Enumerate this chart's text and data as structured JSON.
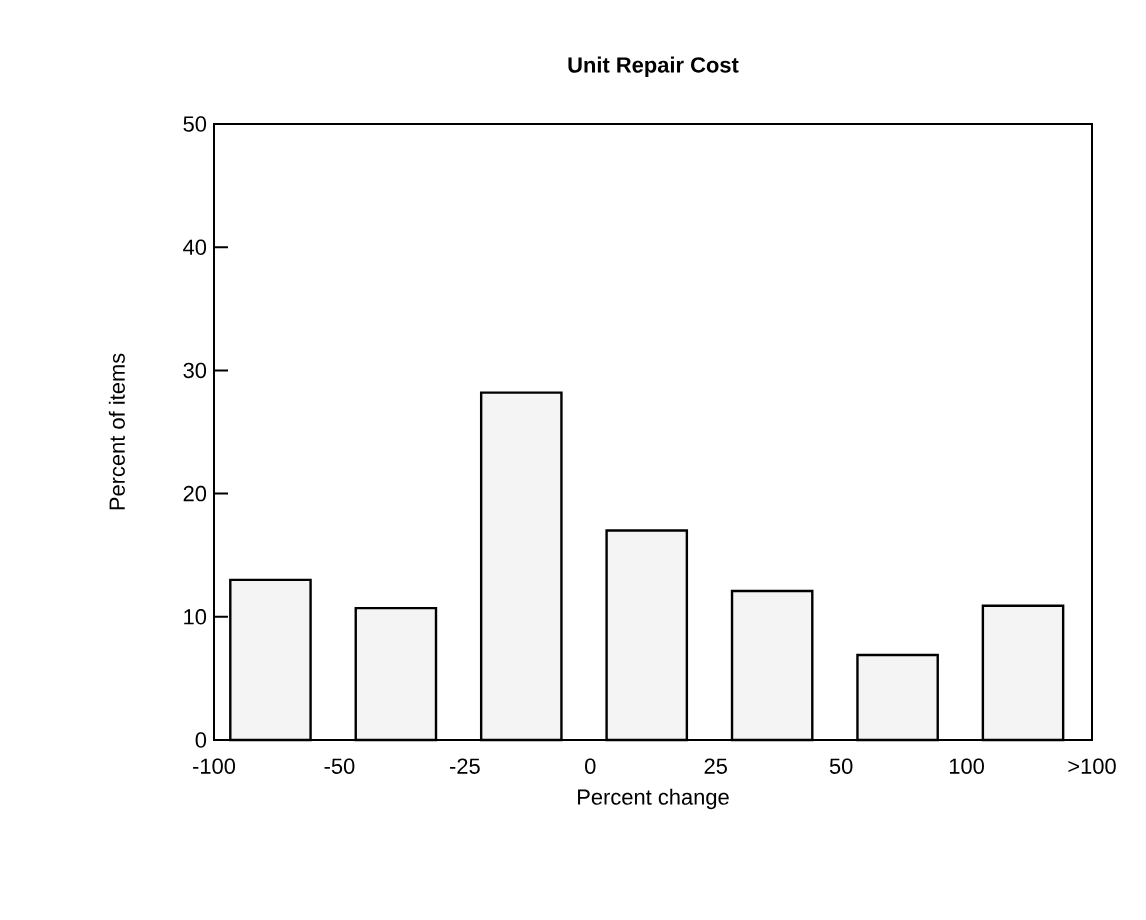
{
  "chart_data": {
    "type": "bar",
    "title": "Unit Repair Cost",
    "xlabel": "Percent change",
    "ylabel": "Percent of items",
    "categories": [
      null,
      null,
      null,
      null,
      null,
      null,
      null
    ],
    "values": [
      13,
      10.7,
      28.2,
      17,
      12.1,
      6.9,
      10.9
    ],
    "color": "#000000",
    "colors": [
      "#f4f4f4",
      "#f4f4f4",
      "#f4f4f4",
      "#f4f4f4",
      "#f4f4f4",
      "#f4f4f4",
      "#f4f4f4"
    ],
    "annotations": [
      "-100",
      "-50",
      "-25",
      "0",
      "25",
      "50",
      "100",
      ">100"
    ],
    "ylim": [
      0,
      50
    ],
    "yticks": [
      0,
      10,
      20,
      30,
      40,
      50
    ],
    "grid": false
  }
}
